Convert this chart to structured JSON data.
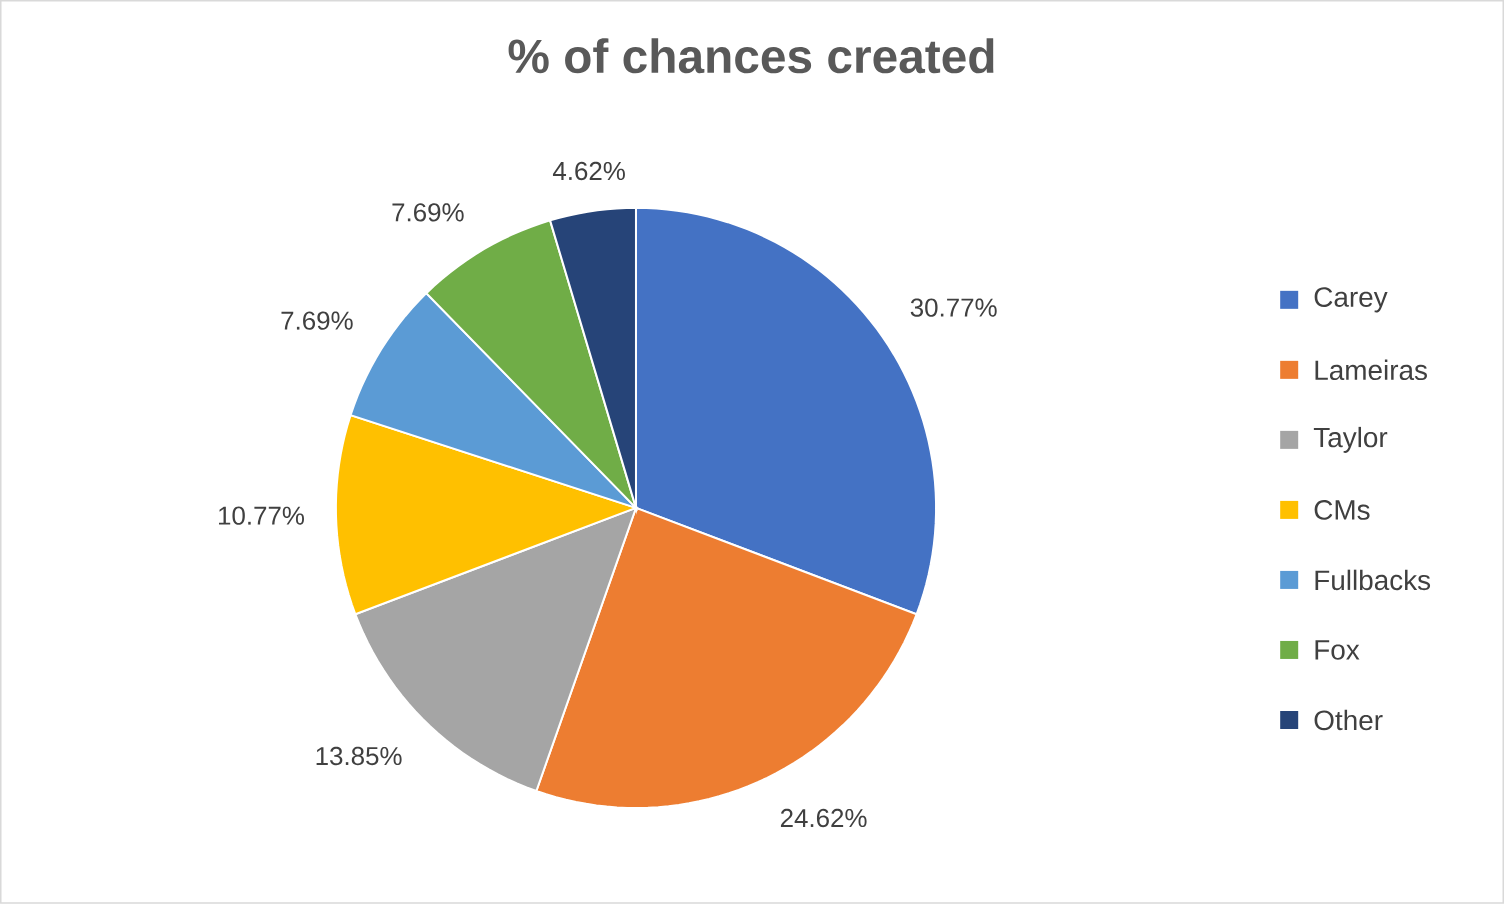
{
  "chart_data": {
    "type": "pie",
    "title": "% of chances created",
    "categories": [
      "Carey",
      "Lameiras",
      "Taylor",
      "CMs",
      "Fullbacks",
      "Fox",
      "Other"
    ],
    "values": [
      30.77,
      24.62,
      13.85,
      10.77,
      7.69,
      7.69,
      4.62
    ],
    "colors": [
      "#4472c4",
      "#ed7d31",
      "#a5a5a5",
      "#ffc000",
      "#5b9bd5",
      "#70ad47",
      "#264478"
    ],
    "value_labels": [
      "30.77%",
      "24.62%",
      "13.85%",
      "10.77%",
      "7.69%",
      "7.69%",
      "4.62%"
    ],
    "legend": "right"
  }
}
